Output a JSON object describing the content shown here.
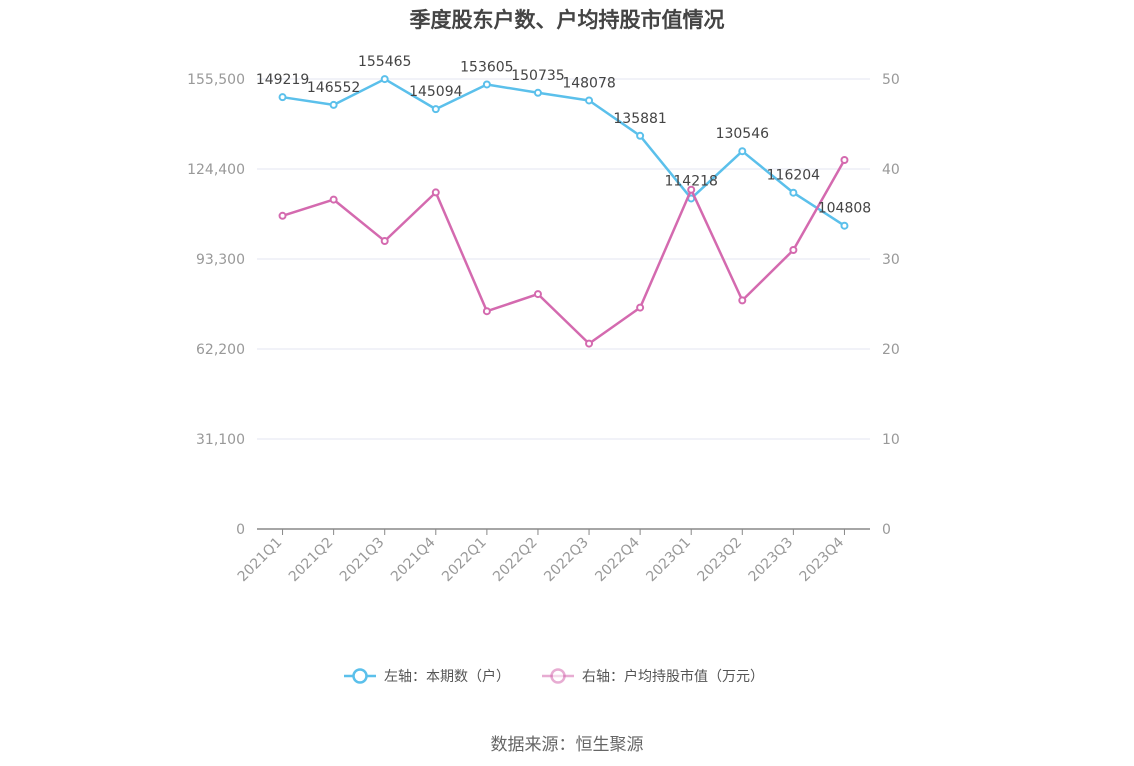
{
  "colors": {
    "left_series": "#5bc0eb",
    "right_series": "#d46aaf",
    "grid": "#e3e5f0",
    "axis": "#888888"
  },
  "source_text": "数据来源：恒生聚源",
  "chart_data": {
    "type": "line",
    "title": "季度股东户数、户均持股市值情况",
    "categories": [
      "2021Q1",
      "2021Q2",
      "2021Q3",
      "2021Q4",
      "2022Q1",
      "2022Q2",
      "2022Q3",
      "2022Q4",
      "2023Q1",
      "2023Q2",
      "2023Q3",
      "2023Q4"
    ],
    "left_axis": {
      "ylim": [
        0,
        155500
      ],
      "ticks": [
        0,
        31100,
        62200,
        93300,
        124400,
        155500
      ],
      "tick_labels": [
        "0",
        "31,100",
        "62,200",
        "93,300",
        "124,400",
        "155,500"
      ]
    },
    "right_axis": {
      "ylim": [
        0,
        50
      ],
      "ticks": [
        0,
        10,
        20,
        30,
        40,
        50
      ],
      "tick_labels": [
        "0",
        "10",
        "20",
        "30",
        "40",
        "50"
      ]
    },
    "series": [
      {
        "name": "左轴：本期数（户）",
        "axis": "left",
        "color": "#5bc0eb",
        "values": [
          149219,
          146552,
          155465,
          145094,
          153605,
          150735,
          148078,
          135881,
          114218,
          130546,
          116204,
          104808
        ],
        "labels": [
          "149219",
          "146552",
          "155465",
          "145094",
          "153605",
          "150735",
          "148078",
          "135881",
          "114218",
          "130546",
          "116204",
          "104808"
        ]
      },
      {
        "name": "右轴：户均持股市值（万元）",
        "axis": "right",
        "color": "#d46aaf",
        "values": [
          34.8,
          36.6,
          32.0,
          37.4,
          24.2,
          26.1,
          20.6,
          24.6,
          37.7,
          25.4,
          31.0,
          41.0
        ]
      }
    ],
    "grid": true,
    "legend_position": "bottom"
  }
}
